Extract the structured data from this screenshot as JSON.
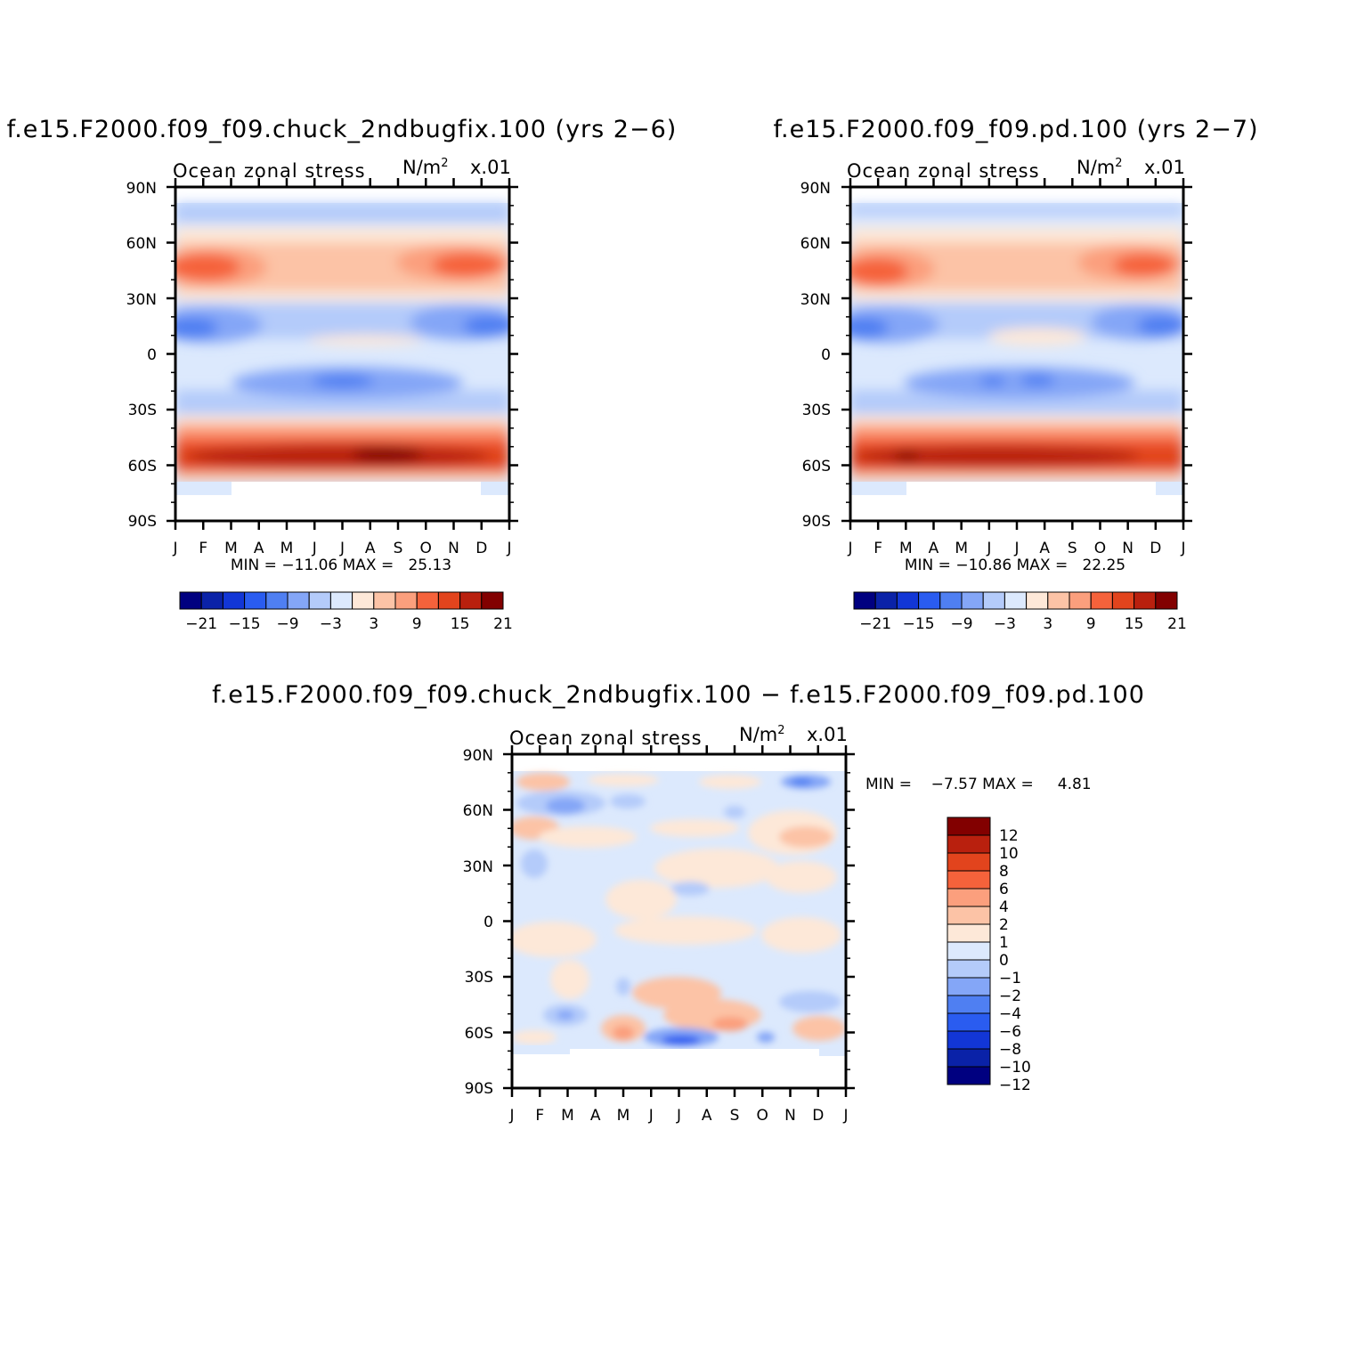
{
  "colors": {
    "top_levels": [
      "#000080",
      "#0a22a8",
      "#1236d6",
      "#2a5cf0",
      "#4f7ff2",
      "#84a6f7",
      "#b4cbfa",
      "#dce9fd",
      "#fde8d8",
      "#fcc3a6",
      "#fb9f7d",
      "#f5623b",
      "#e2441d",
      "#b9200e",
      "#820000"
    ],
    "diff_levels": [
      "#000080",
      "#0a22a8",
      "#1236d6",
      "#2a5cf0",
      "#4f7ff2",
      "#84a6f7",
      "#b4cbfa",
      "#dce9fd",
      "#fde8d8",
      "#fcc3a6",
      "#fb9f7d",
      "#f5623b",
      "#e2441d",
      "#b9200e",
      "#820000"
    ]
  },
  "panels": [
    {
      "title": "f.e15.F2000.f09_f09.chuck_2ndbugfix.100 (yrs 2−6)",
      "left_label": "Ocean zonal stress",
      "units": "N/m",
      "units_sup": "2",
      "scale": "x.01",
      "minmax": "MIN = −11.06 MAX =   25.13",
      "colorbar_labels": [
        "−21",
        "−15",
        "−9",
        "−3",
        "3",
        "9",
        "15",
        "21"
      ]
    },
    {
      "title": "f.e15.F2000.f09_f09.pd.100 (yrs 2−7)",
      "left_label": "Ocean zonal stress",
      "units": "N/m",
      "units_sup": "2",
      "scale": "x.01",
      "minmax": "MIN = −10.86 MAX =   22.25",
      "colorbar_labels": [
        "−21",
        "−15",
        "−9",
        "−3",
        "3",
        "9",
        "15",
        "21"
      ]
    },
    {
      "title": "f.e15.F2000.f09_f09.chuck_2ndbugfix.100 − f.e15.F2000.f09_f09.pd.100",
      "left_label": "Ocean zonal stress",
      "units": "N/m",
      "units_sup": "2",
      "scale": "x.01",
      "minmax": "MIN =    −7.57 MAX =     4.81",
      "colorbar_labels": [
        "12",
        "10",
        "8",
        "6",
        "4",
        "2",
        "1",
        "0",
        "−1",
        "−2",
        "−4",
        "−6",
        "−8",
        "−10",
        "−12"
      ]
    }
  ],
  "chart_data": [
    {
      "type": "heatmap",
      "title": "f.e15.F2000.f09_f09.chuck_2ndbugfix.100 (yrs 2−6)",
      "xlabel": "",
      "ylabel": "",
      "x_ticks": [
        "J",
        "F",
        "M",
        "A",
        "M",
        "J",
        "J",
        "A",
        "S",
        "O",
        "N",
        "D",
        "J"
      ],
      "y_ticks": [
        "90N",
        "60N",
        "30N",
        "0",
        "30S",
        "60S",
        "90S"
      ],
      "ylim": [
        -90,
        90
      ],
      "min": -11.06,
      "max": 25.13,
      "latitude_profile_annual": [
        {
          "lat": 75,
          "value": -2
        },
        {
          "lat": 60,
          "value": 2
        },
        {
          "lat": 45,
          "value": 12
        },
        {
          "lat": 30,
          "value": 2
        },
        {
          "lat": 15,
          "value": -8
        },
        {
          "lat": 0,
          "value": 1
        },
        {
          "lat": -15,
          "value": -3
        },
        {
          "lat": -25,
          "value": -6
        },
        {
          "lat": -40,
          "value": -3
        },
        {
          "lat": -50,
          "value": 10
        },
        {
          "lat": -55,
          "value": 22
        },
        {
          "lat": -65,
          "value": 2
        }
      ]
    },
    {
      "type": "heatmap",
      "title": "f.e15.F2000.f09_f09.pd.100 (yrs 2−7)",
      "xlabel": "",
      "ylabel": "",
      "x_ticks": [
        "J",
        "F",
        "M",
        "A",
        "M",
        "J",
        "J",
        "A",
        "S",
        "O",
        "N",
        "D",
        "J"
      ],
      "y_ticks": [
        "90N",
        "60N",
        "30N",
        "0",
        "30S",
        "60S",
        "90S"
      ],
      "ylim": [
        -90,
        90
      ],
      "min": -10.86,
      "max": 22.25,
      "latitude_profile_annual": [
        {
          "lat": 75,
          "value": -2
        },
        {
          "lat": 60,
          "value": 2
        },
        {
          "lat": 45,
          "value": 11
        },
        {
          "lat": 30,
          "value": 2
        },
        {
          "lat": 15,
          "value": -8
        },
        {
          "lat": 0,
          "value": 1
        },
        {
          "lat": -15,
          "value": -3
        },
        {
          "lat": -25,
          "value": -6
        },
        {
          "lat": -40,
          "value": -3
        },
        {
          "lat": -50,
          "value": 10
        },
        {
          "lat": -55,
          "value": 20
        },
        {
          "lat": -65,
          "value": 2
        }
      ]
    },
    {
      "type": "heatmap",
      "title": "f.e15.F2000.f09_f09.chuck_2ndbugfix.100 − f.e15.F2000.f09_f09.pd.100",
      "xlabel": "",
      "ylabel": "",
      "x_ticks": [
        "J",
        "F",
        "M",
        "A",
        "M",
        "J",
        "J",
        "A",
        "S",
        "O",
        "N",
        "D",
        "J"
      ],
      "y_ticks": [
        "90N",
        "60N",
        "30N",
        "0",
        "30S",
        "60S",
        "90S"
      ],
      "ylim": [
        -90,
        90
      ],
      "min": -7.57,
      "max": 4.81
    }
  ]
}
